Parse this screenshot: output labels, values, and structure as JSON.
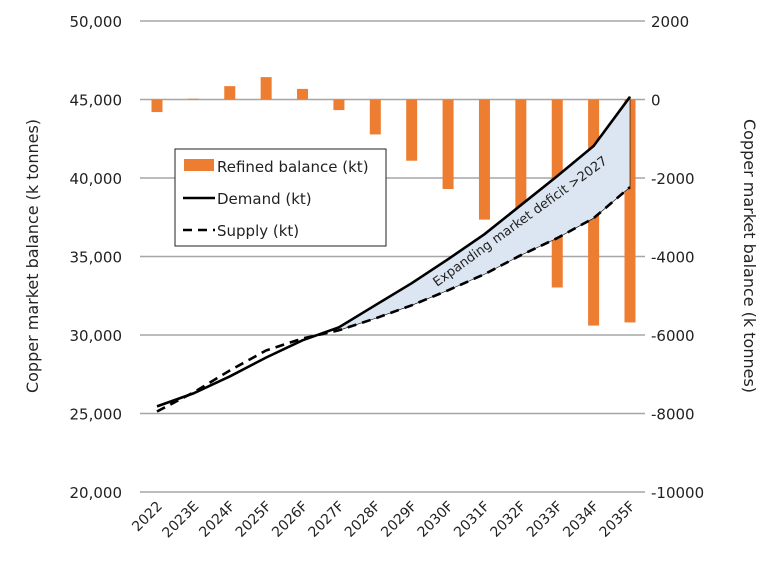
{
  "chart_data": {
    "type": "bar+line",
    "categories": [
      "2022",
      "2023E",
      "2024F",
      "2025F",
      "2026F",
      "2027F",
      "2028F",
      "2029F",
      "2030F",
      "2031F",
      "2032F",
      "2033F",
      "2034F",
      "2035F"
    ],
    "series": [
      {
        "name": "Refined balance (kt)",
        "type": "bar",
        "axis": "right",
        "color": "#ED7D31",
        "values": [
          -320,
          20,
          340,
          570,
          270,
          -270,
          -890,
          -1560,
          -2280,
          -3060,
          -3880,
          -4790,
          -5760,
          -5680
        ]
      },
      {
        "name": "Demand (kt)",
        "type": "line",
        "axis": "left",
        "color": "#000000",
        "dash": "solid",
        "values": [
          25450,
          26280,
          27360,
          28570,
          29660,
          30490,
          31900,
          33300,
          34830,
          36420,
          38270,
          40120,
          42040,
          45170
        ]
      },
      {
        "name": "Supply (kt)",
        "type": "line",
        "axis": "left",
        "color": "#000000",
        "dash": "dashed",
        "values": [
          25130,
          26340,
          27740,
          29020,
          29780,
          30300,
          31060,
          31890,
          32850,
          33870,
          35080,
          36170,
          37440,
          39420
        ]
      }
    ],
    "ylabel": "Copper  market balance (k tonnes)",
    "y2label": "Copper market balance (k tonnes)",
    "ylim": [
      20000,
      50000
    ],
    "y2lim": [
      -10000,
      2000
    ],
    "yticks": [
      "20,000",
      "25,000",
      "30,000",
      "35,000",
      "40,000",
      "45,000",
      "50,000"
    ],
    "y2ticks": [
      "-10000",
      "-8000",
      "-6000",
      "-4000",
      "-2000",
      "0",
      "2000"
    ],
    "annotation": "Expanding market deficit >2027",
    "shade_color": "#DCE6F2",
    "grid": true,
    "legend": "upper-left"
  }
}
